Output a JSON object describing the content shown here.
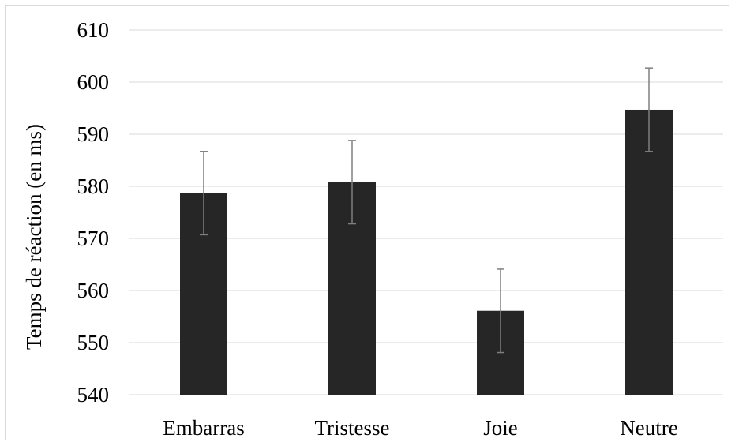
{
  "chart_data": {
    "type": "bar",
    "title": "",
    "xlabel": "",
    "ylabel": "Temps de réaction (en ms)",
    "categories": [
      "Embarras",
      "Tristesse",
      "Joie",
      "Neutre"
    ],
    "series": [
      {
        "values": [
          578.7,
          580.8,
          556.1,
          594.7
        ],
        "error": [
          8,
          8,
          8,
          8
        ]
      }
    ],
    "ylim": [
      540,
      610
    ],
    "yticks": [
      "540",
      "550",
      "560",
      "570",
      "580",
      "590",
      "600",
      "610"
    ],
    "grid": true,
    "legend": "none",
    "colors": {
      "bar": "#262626",
      "error_bar": "#7f7f7f",
      "grid": "#d9d9d9"
    }
  }
}
